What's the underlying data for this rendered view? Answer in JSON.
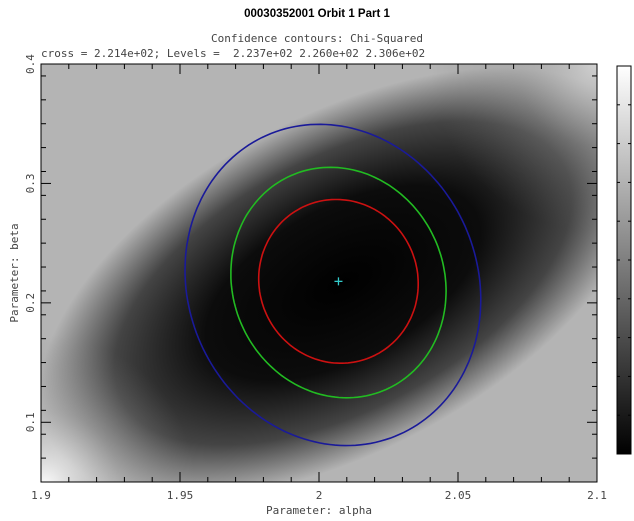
{
  "page": {
    "title": "00030352001 Orbit 1 Part 1"
  },
  "chart_data": {
    "type": "contour",
    "title": "Confidence contours: Chi-Squared",
    "subtitle": "cross = 2.214e+02; Levels =  2.237e+02 2.260e+02 2.306e+02",
    "xlabel": "Parameter: alpha",
    "ylabel": "Parameter: beta",
    "xlim": [
      1.9,
      2.1
    ],
    "ylim": [
      0.05,
      0.4
    ],
    "x_ticks": [
      1.9,
      1.95,
      2,
      2.05,
      2.1
    ],
    "x_tick_labels": [
      "1.9",
      "1.95",
      "2",
      "2.05",
      "2.1"
    ],
    "y_ticks": [
      0.1,
      0.2,
      0.3,
      0.4
    ],
    "y_tick_labels": [
      "0.1",
      "0.2",
      "0.3",
      "0.4"
    ],
    "best_fit": {
      "alpha": 2.007,
      "beta": 0.218,
      "chi2": 221.4,
      "marker": "cross",
      "color": "#33cccc"
    },
    "contours": [
      {
        "level": 223.7,
        "color": "#cc1111",
        "cx": 2.007,
        "cy": 0.218,
        "rx": 0.0285,
        "ry": 0.069,
        "angle_deg": -24
      },
      {
        "level": 226.0,
        "color": "#22bb22",
        "cx": 2.007,
        "cy": 0.217,
        "rx": 0.038,
        "ry": 0.098,
        "angle_deg": -24
      },
      {
        "level": 230.6,
        "color": "#1a1a99",
        "cx": 2.005,
        "cy": 0.215,
        "rx": 0.052,
        "ry": 0.137,
        "angle_deg": -24
      }
    ],
    "background": "grayscale chi-squared map, dark at minimum, bright toward corners",
    "colorbar": "grayscale, white at top, black at bottom"
  }
}
